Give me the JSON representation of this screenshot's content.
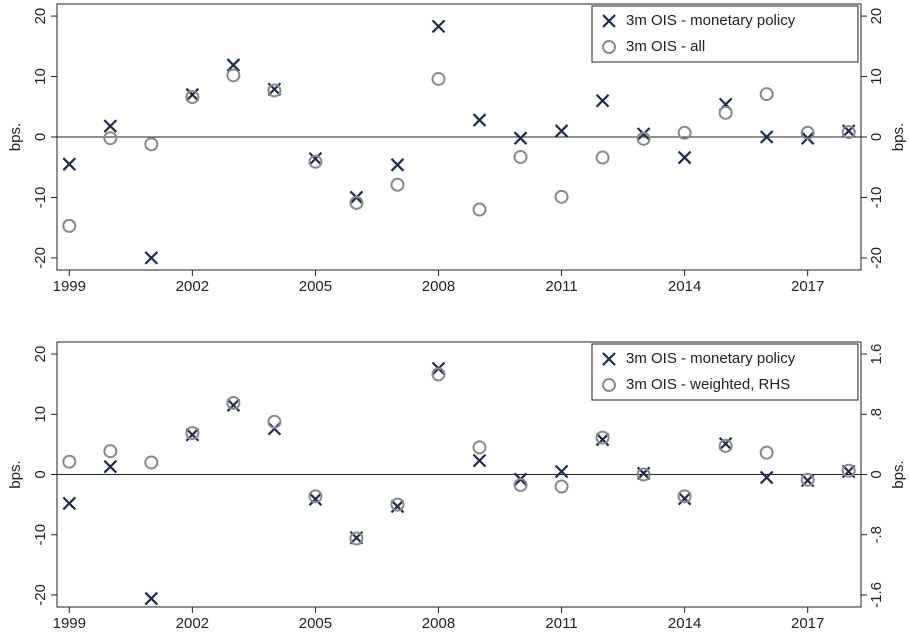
{
  "chart_data": [
    {
      "type": "scatter",
      "x": [
        1999,
        2000,
        2001,
        2002,
        2003,
        2004,
        2005,
        2006,
        2007,
        2008,
        2009,
        2010,
        2011,
        2012,
        2013,
        2014,
        2015,
        2016,
        2017,
        2018
      ],
      "xlim": [
        1998.7,
        2018.3
      ],
      "xticks": [
        1999,
        2002,
        2005,
        2008,
        2011,
        2014,
        2017
      ],
      "ylabel": "bps.",
      "ylim": [
        -22,
        22
      ],
      "yticks": [
        -20,
        -10,
        0,
        10,
        20
      ],
      "y2label": "bps.",
      "y2lim": [
        -22,
        22
      ],
      "y2ticks": [
        -20,
        -10,
        0,
        10,
        20
      ],
      "reference_line": 0,
      "legend": "upper right",
      "series": [
        {
          "name": "3m OIS - monetary policy",
          "color": "#1c2b4e",
          "marker": "x",
          "values": [
            -4.5,
            1.8,
            -20,
            7,
            11.9,
            7.9,
            -3.6,
            -10,
            -4.6,
            18.3,
            2.8,
            -0.2,
            1,
            6,
            0.5,
            -3.4,
            5.4,
            0,
            -0.2,
            1
          ]
        },
        {
          "name": "3m OIS - all",
          "color": "#8a8a8a",
          "marker": "o",
          "values": [
            -14.7,
            -0.2,
            -1.2,
            6.6,
            10.2,
            7.7,
            -4.1,
            -10.9,
            -7.9,
            9.6,
            -12,
            -3.3,
            -9.9,
            -3.4,
            -0.3,
            0.7,
            4,
            7.1,
            0.7,
            0.8
          ]
        }
      ]
    },
    {
      "type": "scatter",
      "x": [
        1999,
        2000,
        2001,
        2002,
        2003,
        2004,
        2005,
        2006,
        2007,
        2008,
        2009,
        2010,
        2011,
        2012,
        2013,
        2014,
        2015,
        2016,
        2017,
        2018
      ],
      "xlim": [
        1998.7,
        2018.3
      ],
      "xticks": [
        1999,
        2002,
        2005,
        2008,
        2011,
        2014,
        2017
      ],
      "ylabel": "bps.",
      "ylim": [
        -22,
        22
      ],
      "yticks": [
        -20,
        -10,
        0,
        10,
        20
      ],
      "y2label": "bps.",
      "y2lim": [
        -1.76,
        1.76
      ],
      "y2ticks": [
        -1.6,
        {
          "value": -0.8,
          "label": "-.8"
        },
        0,
        {
          "value": 0.8,
          "label": ".8"
        },
        1.6
      ],
      "reference_line": 0,
      "legend": "upper right",
      "series": [
        {
          "name": "3m OIS - monetary policy",
          "color": "#1c2b4e",
          "marker": "x",
          "values": [
            -4.8,
            1.3,
            -20.6,
            6.6,
            11.5,
            7.6,
            -4.1,
            -10.5,
            -5.3,
            17.6,
            2.3,
            -0.8,
            0.5,
            5.8,
            0.2,
            -4,
            5.1,
            -0.5,
            -1,
            0.5
          ]
        },
        {
          "name": "3m OIS - weighted, RHS",
          "color": "#8a8a8a",
          "marker": "o",
          "axis": "y2",
          "values": [
            0.17,
            0.31,
            0.16,
            0.55,
            0.95,
            0.7,
            -0.29,
            -0.85,
            -0.4,
            1.33,
            0.36,
            -0.14,
            -0.16,
            0.49,
            0,
            -0.29,
            0.38,
            0.29,
            -0.07,
            0.05
          ]
        }
      ]
    }
  ]
}
